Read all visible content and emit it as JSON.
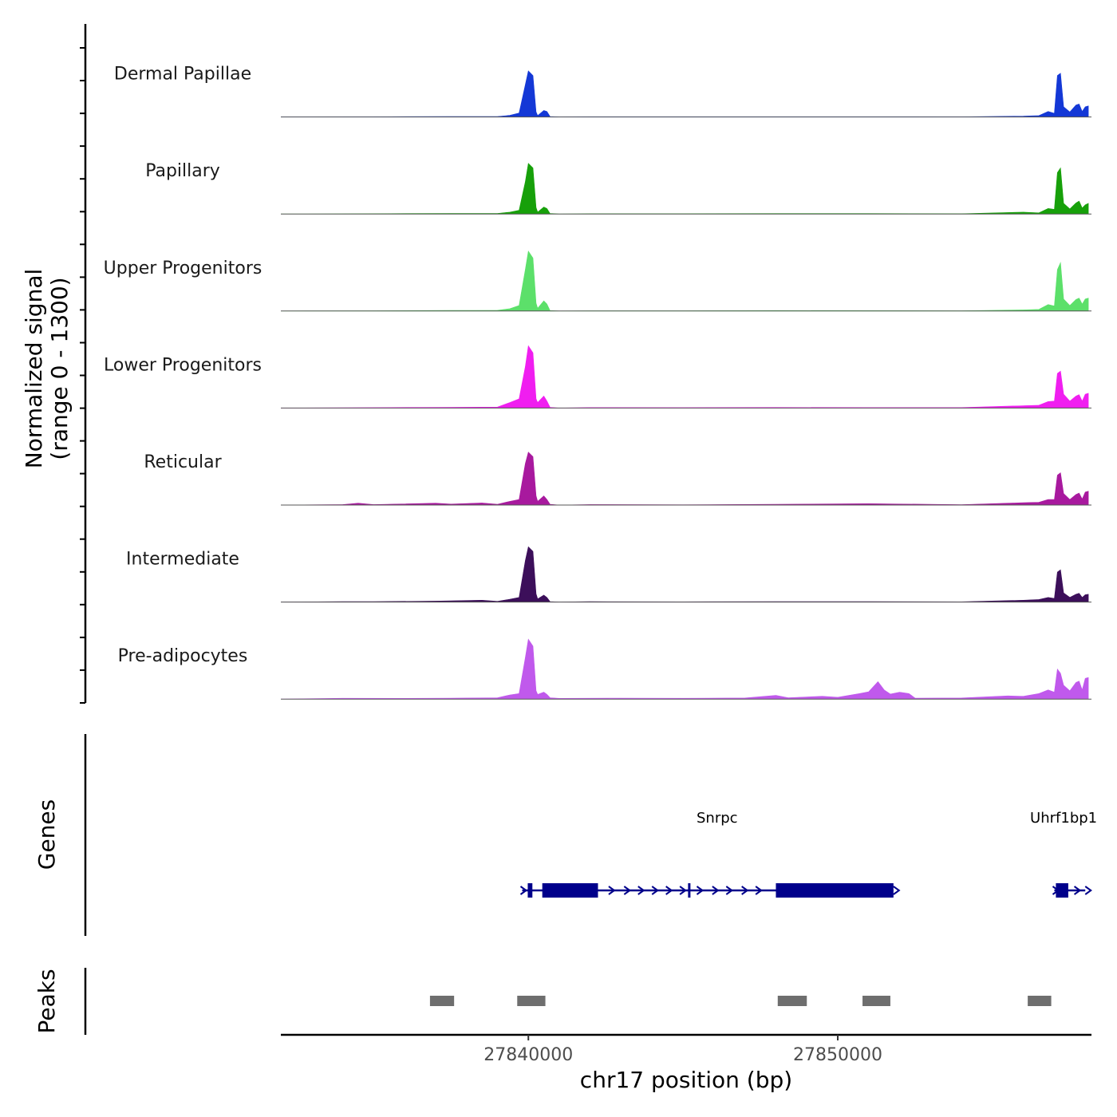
{
  "chart_data": {
    "type": "coverage_tracks",
    "chromosome": "chr17",
    "xlim": [
      27832000,
      27858200
    ],
    "x_ticks": [
      27840000,
      27850000
    ],
    "x_tick_labels": [
      "27840000",
      "27850000"
    ],
    "xlabel": "chr17 position (bp)",
    "ylabel_line1": "Normalized signal",
    "ylabel_line2": "(range 0 - 1300)",
    "y_range": [
      0,
      1300
    ],
    "track_gene_label": "Genes",
    "track_peak_label": "Peaks",
    "coverage_tracks": [
      {
        "name": "Dermal Papillae",
        "color": "#1438d6",
        "points": [
          [
            27832000,
            0
          ],
          [
            27835000,
            4
          ],
          [
            27837500,
            10
          ],
          [
            27839000,
            10
          ],
          [
            27839400,
            35
          ],
          [
            27839700,
            85
          ],
          [
            27839900,
            700
          ],
          [
            27840000,
            1000
          ],
          [
            27840150,
            900
          ],
          [
            27840250,
            110
          ],
          [
            27840300,
            30
          ],
          [
            27840500,
            140
          ],
          [
            27840600,
            120
          ],
          [
            27840700,
            10
          ],
          [
            27841000,
            0
          ],
          [
            27842000,
            6
          ],
          [
            27845000,
            5
          ],
          [
            27848000,
            6
          ],
          [
            27851000,
            6
          ],
          [
            27854000,
            4
          ],
          [
            27856000,
            18
          ],
          [
            27856500,
            30
          ],
          [
            27856800,
            120
          ],
          [
            27857000,
            80
          ],
          [
            27857100,
            900
          ],
          [
            27857200,
            950
          ],
          [
            27857300,
            220
          ],
          [
            27857500,
            110
          ],
          [
            27857700,
            260
          ],
          [
            27857800,
            280
          ],
          [
            27857900,
            120
          ],
          [
            27858000,
            220
          ],
          [
            27858100,
            240
          ]
        ]
      },
      {
        "name": "Papillary",
        "color": "#17a00a",
        "points": [
          [
            27832000,
            0
          ],
          [
            27835000,
            5
          ],
          [
            27837500,
            12
          ],
          [
            27839000,
            12
          ],
          [
            27839400,
            40
          ],
          [
            27839700,
            80
          ],
          [
            27839900,
            700
          ],
          [
            27840000,
            1100
          ],
          [
            27840150,
            1000
          ],
          [
            27840250,
            140
          ],
          [
            27840300,
            40
          ],
          [
            27840500,
            150
          ],
          [
            27840600,
            120
          ],
          [
            27840700,
            10
          ],
          [
            27841000,
            0
          ],
          [
            27842000,
            6
          ],
          [
            27845000,
            5
          ],
          [
            27848000,
            8
          ],
          [
            27851000,
            8
          ],
          [
            27854000,
            5
          ],
          [
            27856000,
            40
          ],
          [
            27856500,
            25
          ],
          [
            27856800,
            120
          ],
          [
            27857000,
            100
          ],
          [
            27857100,
            900
          ],
          [
            27857200,
            1000
          ],
          [
            27857300,
            230
          ],
          [
            27857500,
            110
          ],
          [
            27857700,
            240
          ],
          [
            27857800,
            280
          ],
          [
            27857900,
            130
          ],
          [
            27858000,
            200
          ],
          [
            27858100,
            230
          ]
        ]
      },
      {
        "name": "Upper Progenitors",
        "color": "#5ce06a",
        "points": [
          [
            27832000,
            0
          ],
          [
            27835000,
            5
          ],
          [
            27837500,
            12
          ],
          [
            27839000,
            15
          ],
          [
            27839400,
            50
          ],
          [
            27839700,
            120
          ],
          [
            27839900,
            900
          ],
          [
            27840000,
            1300
          ],
          [
            27840150,
            1150
          ],
          [
            27840250,
            170
          ],
          [
            27840300,
            60
          ],
          [
            27840500,
            220
          ],
          [
            27840600,
            150
          ],
          [
            27840700,
            10
          ],
          [
            27841000,
            0
          ],
          [
            27842000,
            6
          ],
          [
            27845000,
            5
          ],
          [
            27848000,
            10
          ],
          [
            27851000,
            8
          ],
          [
            27854000,
            5
          ],
          [
            27856000,
            25
          ],
          [
            27856500,
            35
          ],
          [
            27856800,
            140
          ],
          [
            27857000,
            110
          ],
          [
            27857100,
            900
          ],
          [
            27857200,
            1050
          ],
          [
            27857300,
            260
          ],
          [
            27857500,
            120
          ],
          [
            27857700,
            250
          ],
          [
            27857800,
            280
          ],
          [
            27857900,
            150
          ],
          [
            27858000,
            260
          ],
          [
            27858100,
            280
          ]
        ]
      },
      {
        "name": "Lower Progenitors",
        "color": "#f01ef0",
        "points": [
          [
            27832000,
            0
          ],
          [
            27835000,
            8
          ],
          [
            27837500,
            15
          ],
          [
            27839000,
            20
          ],
          [
            27839400,
            120
          ],
          [
            27839700,
            200
          ],
          [
            27839900,
            900
          ],
          [
            27840000,
            1350
          ],
          [
            27840150,
            1200
          ],
          [
            27840250,
            200
          ],
          [
            27840300,
            120
          ],
          [
            27840500,
            260
          ],
          [
            27840600,
            150
          ],
          [
            27840700,
            15
          ],
          [
            27841000,
            0
          ],
          [
            27842000,
            10
          ],
          [
            27845000,
            8
          ],
          [
            27848000,
            12
          ],
          [
            27851000,
            10
          ],
          [
            27854000,
            10
          ],
          [
            27856000,
            50
          ],
          [
            27856500,
            60
          ],
          [
            27856800,
            140
          ],
          [
            27857000,
            150
          ],
          [
            27857100,
            750
          ],
          [
            27857200,
            800
          ],
          [
            27857300,
            300
          ],
          [
            27857500,
            150
          ],
          [
            27857700,
            260
          ],
          [
            27857800,
            290
          ],
          [
            27857900,
            150
          ],
          [
            27858000,
            300
          ],
          [
            27858100,
            320
          ]
        ]
      },
      {
        "name": "Reticular",
        "color": "#a8199e",
        "points": [
          [
            27832000,
            0
          ],
          [
            27834000,
            10
          ],
          [
            27834500,
            40
          ],
          [
            27835000,
            10
          ],
          [
            27837000,
            40
          ],
          [
            27837500,
            20
          ],
          [
            27838500,
            45
          ],
          [
            27839000,
            15
          ],
          [
            27839400,
            80
          ],
          [
            27839700,
            120
          ],
          [
            27839900,
            900
          ],
          [
            27840000,
            1150
          ],
          [
            27840150,
            1050
          ],
          [
            27840250,
            200
          ],
          [
            27840300,
            80
          ],
          [
            27840500,
            200
          ],
          [
            27840600,
            120
          ],
          [
            27840700,
            15
          ],
          [
            27841000,
            0
          ],
          [
            27842000,
            10
          ],
          [
            27845000,
            6
          ],
          [
            27848000,
            15
          ],
          [
            27851000,
            30
          ],
          [
            27854000,
            8
          ],
          [
            27856000,
            50
          ],
          [
            27856500,
            60
          ],
          [
            27856800,
            120
          ],
          [
            27857000,
            120
          ],
          [
            27857100,
            650
          ],
          [
            27857200,
            700
          ],
          [
            27857300,
            250
          ],
          [
            27857500,
            120
          ],
          [
            27857700,
            230
          ],
          [
            27857800,
            260
          ],
          [
            27857900,
            130
          ],
          [
            27858000,
            280
          ],
          [
            27858100,
            300
          ]
        ]
      },
      {
        "name": "Intermediate",
        "color": "#3c0f5a",
        "points": [
          [
            27832000,
            0
          ],
          [
            27834000,
            10
          ],
          [
            27835000,
            8
          ],
          [
            27837000,
            20
          ],
          [
            27838500,
            40
          ],
          [
            27839000,
            15
          ],
          [
            27839400,
            60
          ],
          [
            27839700,
            100
          ],
          [
            27839900,
            900
          ],
          [
            27840000,
            1200
          ],
          [
            27840150,
            1100
          ],
          [
            27840250,
            180
          ],
          [
            27840300,
            70
          ],
          [
            27840500,
            150
          ],
          [
            27840600,
            100
          ],
          [
            27840700,
            10
          ],
          [
            27841000,
            0
          ],
          [
            27842000,
            8
          ],
          [
            27845000,
            6
          ],
          [
            27848000,
            10
          ],
          [
            27851000,
            10
          ],
          [
            27854000,
            6
          ],
          [
            27856000,
            40
          ],
          [
            27856500,
            55
          ],
          [
            27856800,
            100
          ],
          [
            27857000,
            80
          ],
          [
            27857100,
            650
          ],
          [
            27857200,
            700
          ],
          [
            27857300,
            200
          ],
          [
            27857500,
            100
          ],
          [
            27857700,
            170
          ],
          [
            27857800,
            190
          ],
          [
            27857900,
            100
          ],
          [
            27858000,
            160
          ],
          [
            27858100,
            170
          ]
        ]
      },
      {
        "name": "Pre-adipocytes",
        "color": "#c059ec",
        "points": [
          [
            27832000,
            0
          ],
          [
            27834000,
            18
          ],
          [
            27836000,
            15
          ],
          [
            27837500,
            20
          ],
          [
            27839000,
            30
          ],
          [
            27839400,
            90
          ],
          [
            27839700,
            120
          ],
          [
            27839900,
            900
          ],
          [
            27840000,
            1300
          ],
          [
            27840150,
            1150
          ],
          [
            27840250,
            180
          ],
          [
            27840300,
            100
          ],
          [
            27840500,
            150
          ],
          [
            27840600,
            100
          ],
          [
            27840700,
            30
          ],
          [
            27841000,
            15
          ],
          [
            27843000,
            20
          ],
          [
            27845000,
            18
          ],
          [
            27847000,
            25
          ],
          [
            27848000,
            80
          ],
          [
            27848400,
            30
          ],
          [
            27849500,
            60
          ],
          [
            27850000,
            40
          ],
          [
            27850700,
            120
          ],
          [
            27851000,
            160
          ],
          [
            27851300,
            380
          ],
          [
            27851500,
            200
          ],
          [
            27851700,
            110
          ],
          [
            27852000,
            150
          ],
          [
            27852300,
            120
          ],
          [
            27852500,
            20
          ],
          [
            27854000,
            25
          ],
          [
            27855500,
            70
          ],
          [
            27856000,
            60
          ],
          [
            27856500,
            120
          ],
          [
            27856800,
            200
          ],
          [
            27857000,
            150
          ],
          [
            27857100,
            650
          ],
          [
            27857200,
            560
          ],
          [
            27857300,
            300
          ],
          [
            27857500,
            180
          ],
          [
            27857700,
            360
          ],
          [
            27857800,
            390
          ],
          [
            27857900,
            200
          ],
          [
            27858000,
            450
          ],
          [
            27858100,
            470
          ]
        ]
      }
    ],
    "genes": [
      {
        "name": "Snrpc",
        "color": "#00008b",
        "strand": "+",
        "start": 27839800,
        "end": 27851800,
        "exons": [
          [
            27839980,
            27840130
          ],
          [
            27840450,
            27842250
          ],
          [
            27848000,
            27851800
          ]
        ],
        "introns_markers": [
          27842700,
          27843200,
          27843650,
          27844100,
          27844550,
          27845000,
          27845550,
          27846050,
          27846500,
          27847000,
          27847450
        ],
        "intron_break": 27845200,
        "label_position": 27846100
      },
      {
        "name": "Uhrf1bp1",
        "color": "#00008b",
        "strand": "+",
        "start": 27857000,
        "end": 27858000,
        "exons": [
          [
            27857050,
            27857450
          ]
        ],
        "introns_markers": [
          27857750
        ],
        "label_position": 27857300
      }
    ],
    "peaks": [
      [
        27836820,
        27837600
      ],
      [
        27839640,
        27840550
      ],
      [
        27848060,
        27849000
      ],
      [
        27850800,
        27851700
      ],
      [
        27856140,
        27856900
      ]
    ]
  }
}
